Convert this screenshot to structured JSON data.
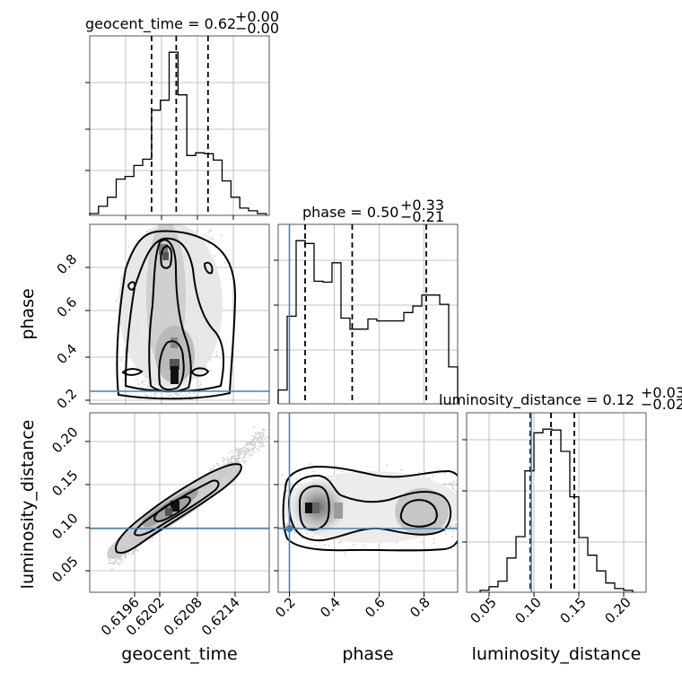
{
  "chart_data": {
    "type": "corner",
    "parameters": [
      "geocent_time",
      "phase",
      "luminosity_distance"
    ],
    "truth_color": "#4682b4",
    "truth": {
      "phase": 0.21,
      "luminosity_distance": 0.099
    },
    "panels": [
      {
        "kind": "hist",
        "param": "geocent_time",
        "title_text": "geocent_time = 0.62",
        "title_up": "+0.00",
        "title_down": "−0.00",
        "xlim": [
          0.6189,
          0.62195
        ],
        "bin_edges": [
          0.6189,
          0.61905,
          0.6192,
          0.61935,
          0.6195,
          0.61965,
          0.6198,
          0.61995,
          0.6201,
          0.62025,
          0.6204,
          0.62055,
          0.6207,
          0.62085,
          0.621,
          0.62115,
          0.6213,
          0.62145,
          0.6216,
          0.62175,
          0.6219
        ],
        "counts": [
          2,
          10,
          20,
          40,
          43,
          55,
          62,
          116,
          127,
          180,
          133,
          66,
          69,
          68,
          61,
          38,
          20,
          8,
          5,
          2
        ],
        "quantiles": [
          0.61995,
          0.62037,
          0.62091
        ]
      },
      {
        "kind": "hist",
        "param": "phase",
        "title_text": "phase = 0.50",
        "title_up": "+0.33",
        "title_down": "−0.21",
        "xlim": [
          0.17,
          0.97
        ],
        "xticks": [
          0.2,
          0.4,
          0.6,
          0.8
        ],
        "tick_labels": [
          "0.2",
          "0.4",
          "0.6",
          "0.8"
        ],
        "bin_edges": [
          0.17,
          0.21,
          0.25,
          0.29,
          0.33,
          0.37,
          0.41,
          0.45,
          0.49,
          0.53,
          0.57,
          0.61,
          0.65,
          0.69,
          0.73,
          0.77,
          0.81,
          0.85,
          0.89,
          0.93,
          0.97
        ],
        "counts": [
          15,
          95,
          177,
          174,
          133,
          132,
          153,
          93,
          81,
          81,
          92,
          90,
          90,
          90,
          99,
          106,
          118,
          118,
          108,
          40
        ],
        "quantiles": [
          0.29,
          0.5,
          0.83
        ]
      },
      {
        "kind": "hist",
        "param": "luminosity_distance",
        "title_text": "luminosity_distance = 0.12",
        "title_up": "+0.03",
        "title_down": "−0.02",
        "xlim": [
          0.025,
          0.225
        ],
        "xticks": [
          0.05,
          0.1,
          0.15,
          0.2
        ],
        "tick_labels": [
          "0.05",
          "0.10",
          "0.15",
          "0.20"
        ],
        "bin_edges": [
          0.04,
          0.05,
          0.06,
          0.07,
          0.08,
          0.09,
          0.1,
          0.11,
          0.12,
          0.13,
          0.14,
          0.15,
          0.16,
          0.17,
          0.18,
          0.19,
          0.2,
          0.21
        ],
        "counts": [
          2,
          6,
          12,
          37,
          60,
          131,
          172,
          176,
          175,
          152,
          103,
          59,
          40,
          23,
          10,
          4,
          2
        ],
        "quantiles": [
          0.096,
          0.119,
          0.145
        ]
      },
      {
        "kind": "2d",
        "x": "geocent_time",
        "y": "phase",
        "xlim": [
          0.6189,
          0.62195
        ],
        "ylim": [
          0.17,
          0.97
        ],
        "yticks": [
          0.2,
          0.4,
          0.6,
          0.8
        ],
        "tick_labels": [
          "0.2",
          "0.4",
          "0.6",
          "0.8"
        ]
      },
      {
        "kind": "2d",
        "x": "geocent_time",
        "y": "luminosity_distance",
        "xlim": [
          0.6189,
          0.62195
        ],
        "ylim": [
          0.025,
          0.235
        ],
        "xticks": [
          0.6196,
          0.6202,
          0.6208,
          0.6214
        ],
        "xtick_labels": [
          "0.6196",
          "0.6202",
          "0.6208",
          "0.6214"
        ],
        "yticks": [
          0.05,
          0.1,
          0.15,
          0.2
        ],
        "ytick_labels": [
          "0.05",
          "0.10",
          "0.15",
          "0.20"
        ]
      },
      {
        "kind": "2d",
        "x": "phase",
        "y": "luminosity_distance",
        "xlim": [
          0.17,
          0.97
        ],
        "ylim": [
          0.025,
          0.235
        ]
      }
    ],
    "xlabels": [
      "geocent_time",
      "phase",
      "luminosity_distance"
    ],
    "ylabels": [
      "phase",
      "luminosity_distance"
    ]
  }
}
